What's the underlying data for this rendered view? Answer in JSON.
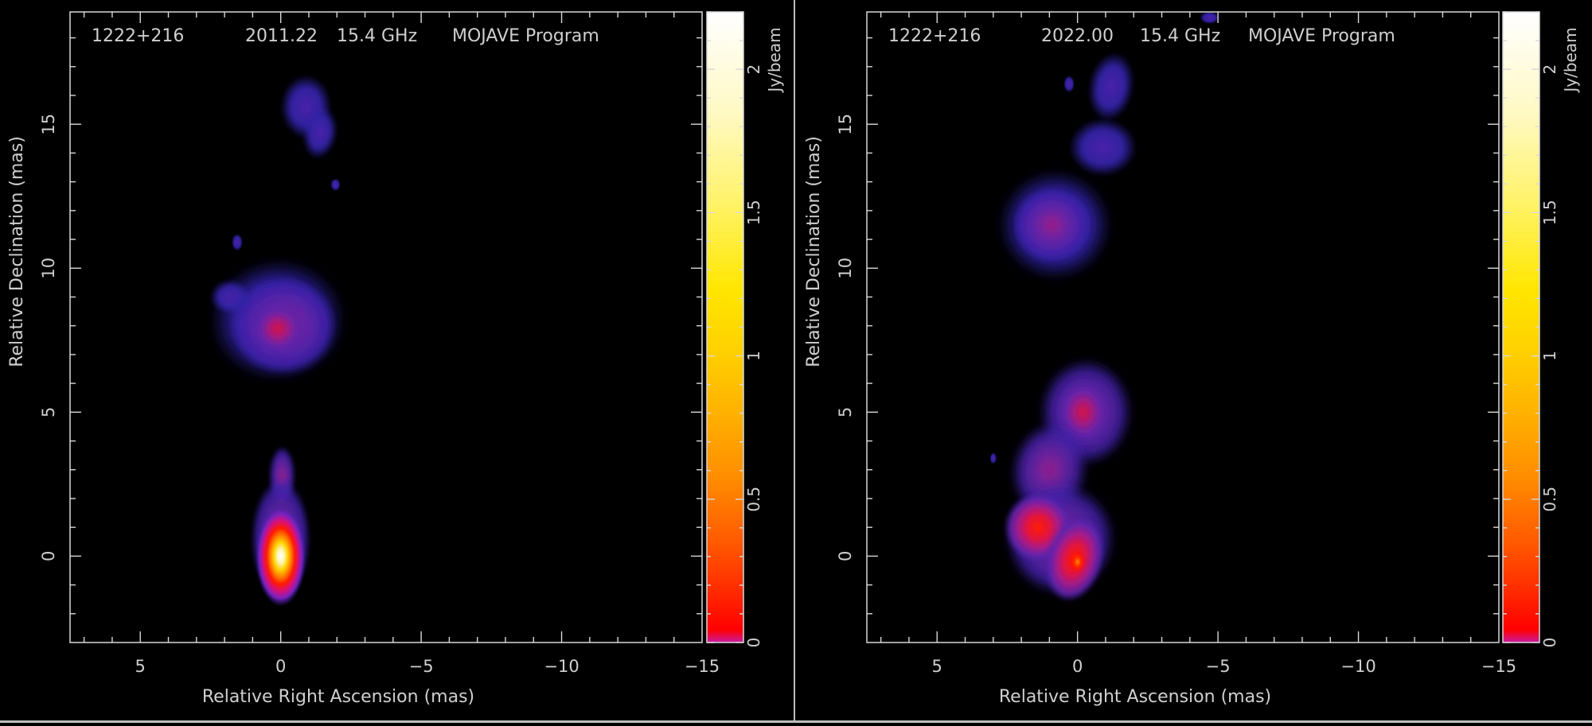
{
  "chart_data": [
    {
      "type": "heatmap",
      "source": "1222+216",
      "epoch": "2011.22",
      "frequency": "15.4 GHz",
      "program": "MOJAVE Program",
      "xlabel": "Relative Right Ascension (mas)",
      "ylabel": "Relative Declination (mas)",
      "xlim": [
        7.5,
        -15
      ],
      "ylim": [
        -3,
        18.9
      ],
      "xticks": [
        {
          "v": 5,
          "t": "5"
        },
        {
          "v": 0,
          "t": "0"
        },
        {
          "v": -5,
          "t": "−5"
        },
        {
          "v": -10,
          "t": "−10"
        },
        {
          "v": -15,
          "t": "−15"
        }
      ],
      "yticks": [
        {
          "v": 0,
          "t": "0"
        },
        {
          "v": 5,
          "t": "5"
        },
        {
          "v": 10,
          "t": "10"
        },
        {
          "v": 15,
          "t": "15"
        }
      ],
      "colorbar": {
        "label": "Jy/beam",
        "range": [
          0,
          2.2
        ],
        "ticks": [
          {
            "v": 0,
            "t": "0"
          },
          {
            "v": 0.5,
            "t": "0.5"
          },
          {
            "v": 1,
            "t": "1"
          },
          {
            "v": 1.5,
            "t": "1.5"
          },
          {
            "v": 2,
            "t": "2"
          }
        ]
      },
      "emission": [
        {
          "ra": 0.0,
          "dec": 0.0,
          "peak": 2.2
        },
        {
          "ra": 0.2,
          "dec": 8.0,
          "peak": 0.25
        },
        {
          "ra": -0.9,
          "dec": 15.5,
          "peak": 0.05
        },
        {
          "ra": 1.6,
          "dec": 11.0,
          "peak": 0.03
        }
      ]
    },
    {
      "type": "heatmap",
      "source": "1222+216",
      "epoch": "2022.00",
      "frequency": "15.4 GHz",
      "program": "MOJAVE Program",
      "xlabel": "Relative Right Ascension (mas)",
      "ylabel": "Relative Declination (mas)",
      "xlim": [
        7.5,
        -15
      ],
      "ylim": [
        -3,
        18.9
      ],
      "xticks": [
        {
          "v": 5,
          "t": "5"
        },
        {
          "v": 0,
          "t": "0"
        },
        {
          "v": -5,
          "t": "−5"
        },
        {
          "v": -10,
          "t": "−10"
        },
        {
          "v": -15,
          "t": "−15"
        }
      ],
      "yticks": [
        {
          "v": 0,
          "t": "0"
        },
        {
          "v": 5,
          "t": "5"
        },
        {
          "v": 10,
          "t": "10"
        },
        {
          "v": 15,
          "t": "15"
        }
      ],
      "colorbar": {
        "label": "Jy/beam",
        "range": [
          0,
          2.2
        ],
        "ticks": [
          {
            "v": 0,
            "t": "0"
          },
          {
            "v": 0.5,
            "t": "0.5"
          },
          {
            "v": 1,
            "t": "1"
          },
          {
            "v": 1.5,
            "t": "1.5"
          },
          {
            "v": 2,
            "t": "2"
          }
        ]
      },
      "emission": [
        {
          "ra": 0.0,
          "dec": -0.2,
          "peak": 0.3
        },
        {
          "ra": 1.4,
          "dec": 1.0,
          "peak": 0.28
        },
        {
          "ra": -0.2,
          "dec": 5.0,
          "peak": 0.12
        },
        {
          "ra": 0.8,
          "dec": 11.5,
          "peak": 0.08
        },
        {
          "ra": -1.0,
          "dec": 15.5,
          "peak": 0.03
        }
      ]
    }
  ]
}
